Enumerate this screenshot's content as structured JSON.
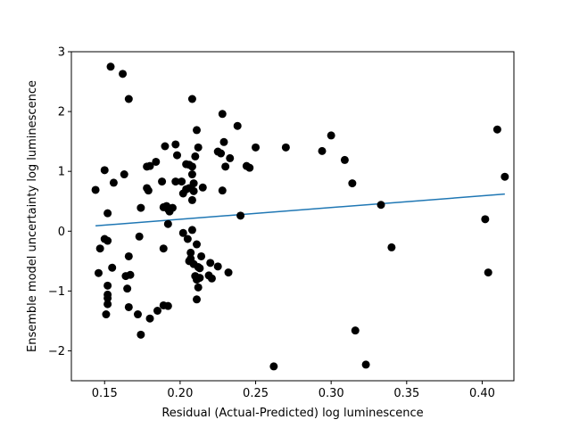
{
  "chart_data": {
    "type": "scatter",
    "title": "",
    "xlabel": "Residual (Actual-Predicted) log luminescence",
    "ylabel": "Ensemble model uncertainty log luminescence",
    "xlim": [
      0.128,
      0.421
    ],
    "ylim": [
      -2.5,
      3.0
    ],
    "xticks": [
      0.15,
      0.2,
      0.25,
      0.3,
      0.35,
      0.4
    ],
    "xtick_labels": [
      "0.15",
      "0.20",
      "0.25",
      "0.30",
      "0.35",
      "0.40"
    ],
    "yticks": [
      -2,
      -1,
      0,
      1,
      2,
      3
    ],
    "ytick_labels": [
      "−2",
      "−1",
      "0",
      "1",
      "2",
      "3"
    ],
    "grid": false,
    "colors": {
      "points": "#000000",
      "fit_line": "#1f77b4"
    },
    "fit_line": {
      "x": [
        0.144,
        0.415
      ],
      "y": [
        0.09,
        0.62
      ]
    },
    "points": [
      [
        0.154,
        2.75
      ],
      [
        0.162,
        2.63
      ],
      [
        0.166,
        2.21
      ],
      [
        0.208,
        2.21
      ],
      [
        0.228,
        1.96
      ],
      [
        0.211,
        1.69
      ],
      [
        0.238,
        1.76
      ],
      [
        0.41,
        1.7
      ],
      [
        0.3,
        1.6
      ],
      [
        0.19,
        1.42
      ],
      [
        0.197,
        1.45
      ],
      [
        0.212,
        1.4
      ],
      [
        0.229,
        1.49
      ],
      [
        0.25,
        1.4
      ],
      [
        0.27,
        1.4
      ],
      [
        0.294,
        1.34
      ],
      [
        0.225,
        1.33
      ],
      [
        0.227,
        1.3
      ],
      [
        0.198,
        1.27
      ],
      [
        0.21,
        1.25
      ],
      [
        0.233,
        1.22
      ],
      [
        0.309,
        1.19
      ],
      [
        0.184,
        1.16
      ],
      [
        0.204,
        1.12
      ],
      [
        0.206,
        1.11
      ],
      [
        0.18,
        1.09
      ],
      [
        0.178,
        1.08
      ],
      [
        0.208,
        1.08
      ],
      [
        0.244,
        1.09
      ],
      [
        0.246,
        1.06
      ],
      [
        0.23,
        1.08
      ],
      [
        0.15,
        1.02
      ],
      [
        0.163,
        0.95
      ],
      [
        0.208,
        0.95
      ],
      [
        0.415,
        0.91
      ],
      [
        0.188,
        0.83
      ],
      [
        0.197,
        0.83
      ],
      [
        0.201,
        0.83
      ],
      [
        0.156,
        0.81
      ],
      [
        0.209,
        0.8
      ],
      [
        0.314,
        0.8
      ],
      [
        0.206,
        0.72
      ],
      [
        0.215,
        0.73
      ],
      [
        0.178,
        0.72
      ],
      [
        0.179,
        0.68
      ],
      [
        0.144,
        0.69
      ],
      [
        0.204,
        0.7
      ],
      [
        0.209,
        0.67
      ],
      [
        0.228,
        0.68
      ],
      [
        0.202,
        0.63
      ],
      [
        0.208,
        0.52
      ],
      [
        0.333,
        0.44
      ],
      [
        0.189,
        0.4
      ],
      [
        0.174,
        0.39
      ],
      [
        0.191,
        0.42
      ],
      [
        0.192,
        0.37
      ],
      [
        0.193,
        0.33
      ],
      [
        0.195,
        0.39
      ],
      [
        0.152,
        0.3
      ],
      [
        0.24,
        0.26
      ],
      [
        0.402,
        0.2
      ],
      [
        0.192,
        0.12
      ],
      [
        0.202,
        -0.03
      ],
      [
        0.208,
        0.02
      ],
      [
        0.173,
        -0.09
      ],
      [
        0.15,
        -0.13
      ],
      [
        0.152,
        -0.16
      ],
      [
        0.205,
        -0.13
      ],
      [
        0.211,
        -0.22
      ],
      [
        0.147,
        -0.29
      ],
      [
        0.189,
        -0.29
      ],
      [
        0.34,
        -0.27
      ],
      [
        0.166,
        -0.42
      ],
      [
        0.207,
        -0.36
      ],
      [
        0.207,
        -0.46
      ],
      [
        0.214,
        -0.42
      ],
      [
        0.206,
        -0.5
      ],
      [
        0.209,
        -0.55
      ],
      [
        0.212,
        -0.6
      ],
      [
        0.213,
        -0.62
      ],
      [
        0.22,
        -0.53
      ],
      [
        0.225,
        -0.59
      ],
      [
        0.232,
        -0.69
      ],
      [
        0.155,
        -0.61
      ],
      [
        0.146,
        -0.7
      ],
      [
        0.164,
        -0.75
      ],
      [
        0.167,
        -0.73
      ],
      [
        0.21,
        -0.75
      ],
      [
        0.211,
        -0.81
      ],
      [
        0.213,
        -0.78
      ],
      [
        0.219,
        -0.74
      ],
      [
        0.221,
        -0.79
      ],
      [
        0.404,
        -0.69
      ],
      [
        0.152,
        -0.91
      ],
      [
        0.165,
        -0.96
      ],
      [
        0.212,
        -0.94
      ],
      [
        0.152,
        -1.06
      ],
      [
        0.152,
        -1.12
      ],
      [
        0.211,
        -1.14
      ],
      [
        0.152,
        -1.22
      ],
      [
        0.166,
        -1.27
      ],
      [
        0.189,
        -1.24
      ],
      [
        0.192,
        -1.25
      ],
      [
        0.185,
        -1.33
      ],
      [
        0.151,
        -1.39
      ],
      [
        0.172,
        -1.39
      ],
      [
        0.18,
        -1.46
      ],
      [
        0.316,
        -1.66
      ],
      [
        0.174,
        -1.73
      ],
      [
        0.323,
        -2.23
      ],
      [
        0.262,
        -2.26
      ]
    ]
  }
}
